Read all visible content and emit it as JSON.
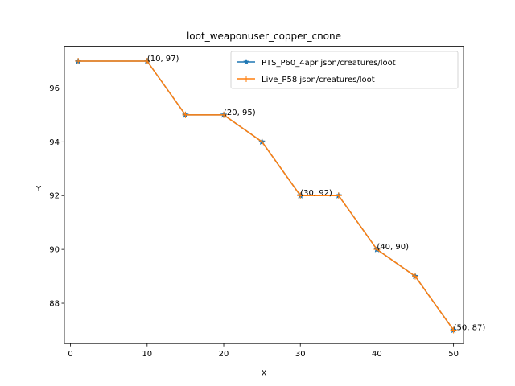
{
  "chart_data": {
    "type": "line",
    "title": "loot_weaponuser_copper_cnone",
    "xlabel": "X",
    "ylabel": "Y",
    "xlim": [
      -0.8,
      51.3
    ],
    "ylim": [
      86.5,
      97.55
    ],
    "xticks": [
      0,
      10,
      20,
      30,
      40,
      50
    ],
    "yticks": [
      88,
      90,
      92,
      94,
      96
    ],
    "legend_position": "upper-right",
    "grid": false,
    "series": [
      {
        "name": "PTS_P60_4apr json/creatures/loot",
        "color": "#1f77b4",
        "marker": "star",
        "x": [
          1,
          10,
          15,
          20,
          25,
          30,
          35,
          40,
          45,
          50
        ],
        "y": [
          97,
          97,
          95,
          95,
          94,
          92,
          92,
          90,
          89,
          87
        ]
      },
      {
        "name": "Live_P58 json/creatures/loot",
        "color": "#ff7f0e",
        "marker": "plus",
        "x": [
          1,
          10,
          15,
          20,
          25,
          30,
          35,
          40,
          45,
          50
        ],
        "y": [
          97,
          97,
          95,
          95,
          94,
          92,
          92,
          90,
          89,
          87
        ]
      }
    ],
    "annotations": [
      {
        "x": 10,
        "y": 97,
        "text": "(10, 97)"
      },
      {
        "x": 20,
        "y": 95,
        "text": "(20, 95)"
      },
      {
        "x": 30,
        "y": 92,
        "text": "(30, 92)"
      },
      {
        "x": 40,
        "y": 90,
        "text": "(40, 90)"
      },
      {
        "x": 50,
        "y": 87,
        "text": "(50, 87)"
      }
    ]
  }
}
